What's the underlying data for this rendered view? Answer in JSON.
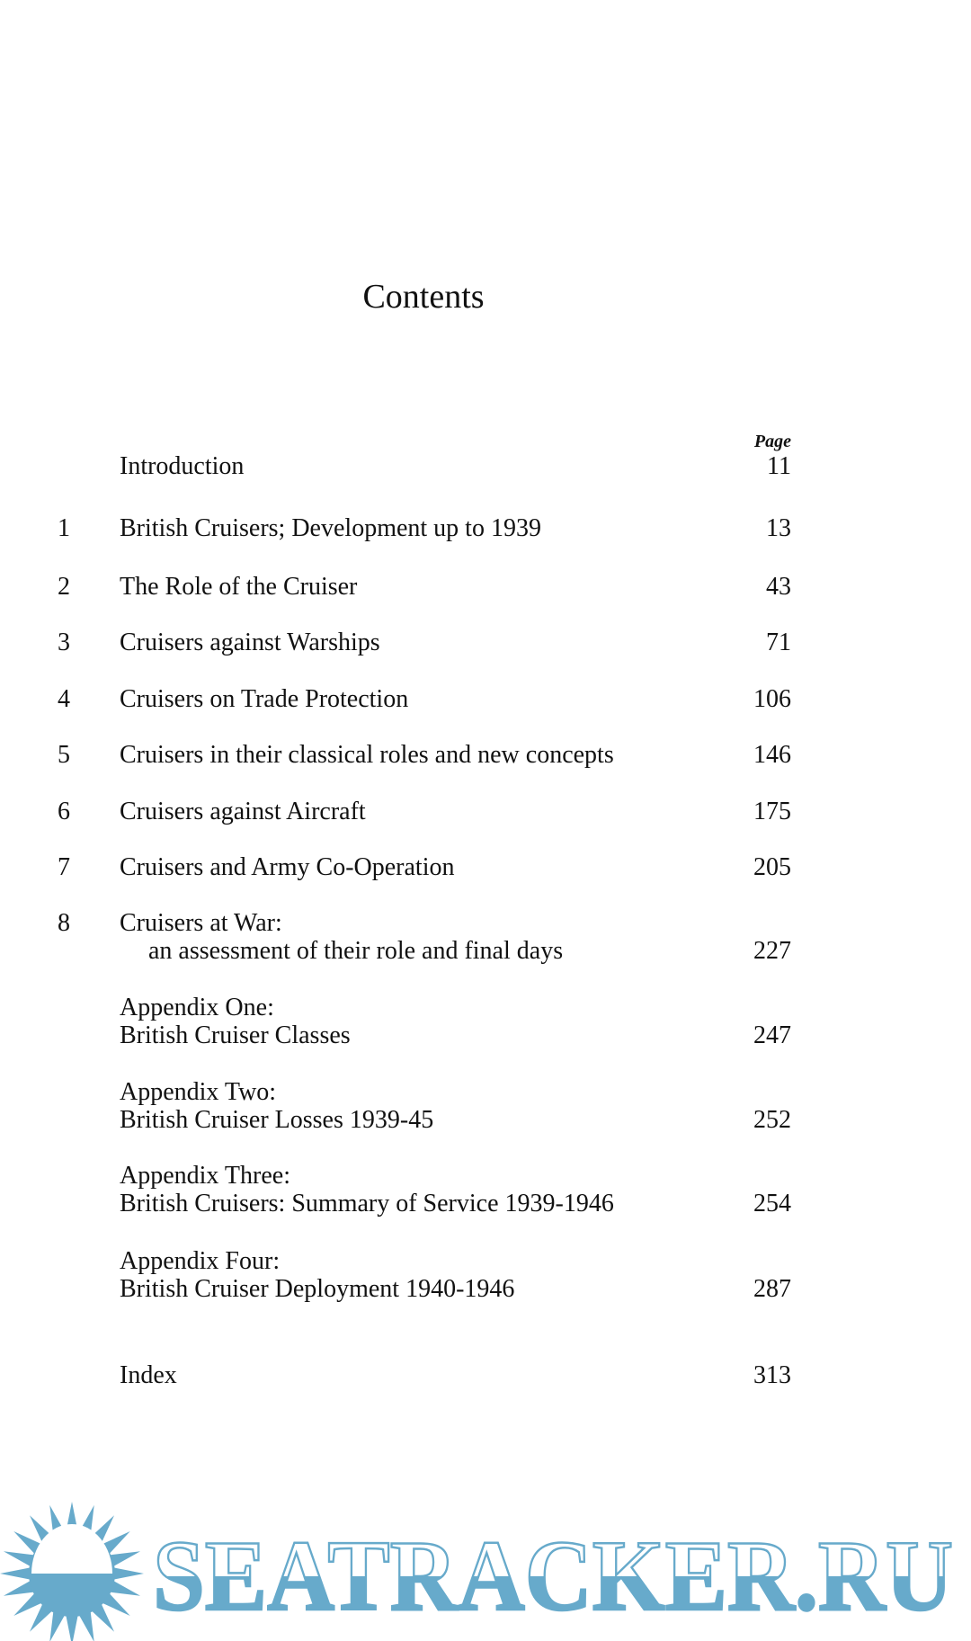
{
  "title": "Contents",
  "page_header": "Page",
  "entries": [
    {
      "num": "",
      "lines": [
        "Introduction"
      ],
      "page": "11"
    },
    {
      "num": "1",
      "lines": [
        "British Cruisers; Development up to 1939"
      ],
      "page": "13"
    },
    {
      "num": "2",
      "lines": [
        "The Role of the Cruiser"
      ],
      "page": "43"
    },
    {
      "num": "3",
      "lines": [
        "Cruisers against Warships"
      ],
      "page": "71"
    },
    {
      "num": "4",
      "lines": [
        "Cruisers on Trade Protection"
      ],
      "page": "106"
    },
    {
      "num": "5",
      "lines": [
        "Cruisers in their classical roles and new concepts"
      ],
      "page": "146"
    },
    {
      "num": "6",
      "lines": [
        "Cruisers against Aircraft"
      ],
      "page": "175"
    },
    {
      "num": "7",
      "lines": [
        "Cruisers and Army Co-Operation"
      ],
      "page": "205"
    },
    {
      "num": "8",
      "lines": [
        "Cruisers at War:",
        "an assessment of their role and final days"
      ],
      "page": "227"
    },
    {
      "num": "",
      "lines": [
        "Appendix One:",
        "British Cruiser Classes"
      ],
      "page": "247"
    },
    {
      "num": "",
      "lines": [
        "Appendix Two:",
        "British Cruiser Losses 1939-45"
      ],
      "page": "252"
    },
    {
      "num": "",
      "lines": [
        "Appendix Three:",
        "British Cruisers: Summary of Service 1939-1946"
      ],
      "page": "254"
    },
    {
      "num": "",
      "lines": [
        "Appendix Four:",
        "British Cruiser Deployment 1940-1946"
      ],
      "page": "287"
    },
    {
      "num": "",
      "lines": [
        "Index"
      ],
      "page": "313"
    }
  ],
  "watermark": {
    "text": "SEATRACKER.RU",
    "color": "#67aacb"
  }
}
